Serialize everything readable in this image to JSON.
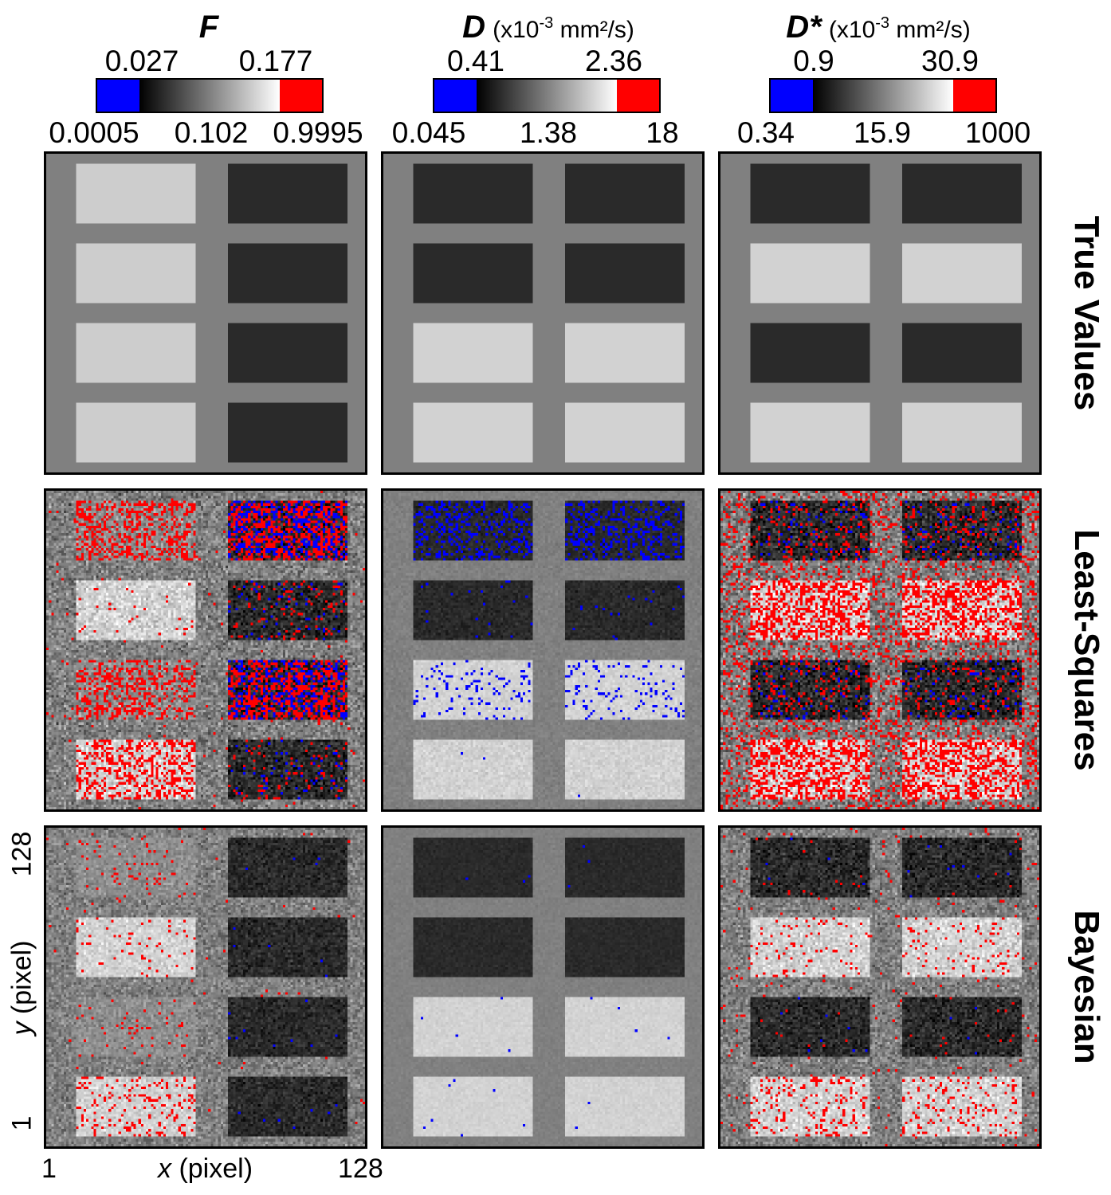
{
  "columns": [
    {
      "symbol": "F",
      "unit_prefix": "",
      "unit_exp": "",
      "unit_rest": "",
      "upper_ticks": [
        "0.027",
        "0.177"
      ],
      "lower_ticks": [
        "0.0005",
        "0.102",
        "0.9995"
      ],
      "colors": {
        "low": "#0000ff",
        "high": "#ff0000"
      }
    },
    {
      "symbol": "D",
      "unit_prefix": "(x10",
      "unit_exp": "-3",
      "unit_rest": " mm²/s)",
      "upper_ticks": [
        "0.41",
        "2.36"
      ],
      "lower_ticks": [
        "0.045",
        "1.38",
        "18"
      ],
      "colors": {
        "low": "#0000ff",
        "high": "#ff0000"
      }
    },
    {
      "symbol": "D*",
      "unit_prefix": "(x10",
      "unit_exp": "-3",
      "unit_rest": " mm²/s)",
      "upper_ticks": [
        "0.9",
        "30.9"
      ],
      "lower_ticks": [
        "0.34",
        "15.9",
        "1000"
      ],
      "colors": {
        "low": "#0000ff",
        "high": "#ff0000"
      }
    }
  ],
  "rows": [
    "True Values",
    "Least-Squares",
    "Bayesian"
  ],
  "axes": {
    "x_label_var": "x",
    "x_label_unit": " (pixel)",
    "y_label_var": "y",
    "y_label_unit": " (pixel)",
    "x_min": "1",
    "x_max": "128",
    "y_min": "1",
    "y_max": "128"
  },
  "phantom_levels": {
    "F": [
      [
        "light",
        "dark"
      ],
      [
        "light",
        "dark"
      ],
      [
        "light",
        "dark"
      ],
      [
        "light",
        "dark"
      ]
    ],
    "D": [
      [
        "dark",
        "dark"
      ],
      [
        "dark",
        "dark"
      ],
      [
        "light",
        "light"
      ],
      [
        "light",
        "light"
      ]
    ],
    "Ds": [
      [
        "dark",
        "dark"
      ],
      [
        "light",
        "light"
      ],
      [
        "dark",
        "dark"
      ],
      [
        "light",
        "light"
      ]
    ]
  }
}
